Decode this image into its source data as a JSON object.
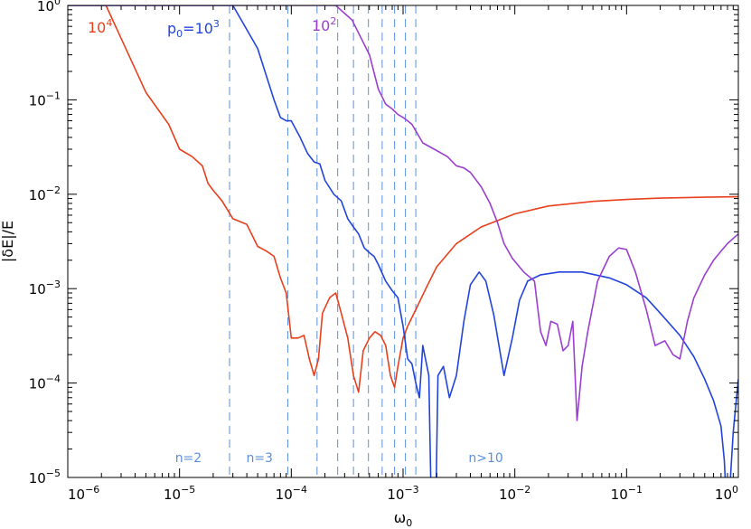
{
  "chart_data": {
    "type": "line",
    "xlabel": "ω",
    "xlabel_sub": "0",
    "ylabel": "|δE|/E",
    "x_scale": "log",
    "y_scale": "log",
    "xlim": [
      1e-06,
      1
    ],
    "ylim": [
      1e-05,
      1
    ],
    "grid": false,
    "x_ticks": [
      {
        "value": 1e-06,
        "base": "10",
        "exp": "−6"
      },
      {
        "value": 1e-05,
        "base": "10",
        "exp": "−5"
      },
      {
        "value": 0.0001,
        "base": "10",
        "exp": "−4"
      },
      {
        "value": 0.001,
        "base": "10",
        "exp": "−3"
      },
      {
        "value": 0.01,
        "base": "10",
        "exp": "−2"
      },
      {
        "value": 0.1,
        "base": "10",
        "exp": "−1"
      },
      {
        "value": 1,
        "base": "10",
        "exp": "0"
      }
    ],
    "y_ticks": [
      {
        "value": 1e-05,
        "base": "10",
        "exp": "−5"
      },
      {
        "value": 0.0001,
        "base": "10",
        "exp": "−4"
      },
      {
        "value": 0.001,
        "base": "10",
        "exp": "−3"
      },
      {
        "value": 0.01,
        "base": "10",
        "exp": "−2"
      },
      {
        "value": 0.1,
        "base": "10",
        "exp": "−1"
      },
      {
        "value": 1,
        "base": "10",
        "exp": "0"
      }
    ],
    "series": [
      {
        "label_base": "10",
        "label_exp": "4",
        "color": "#e8401c",
        "x": [
          1e-06,
          2.2e-06,
          5e-06,
          8e-06,
          1e-05,
          1.3e-05,
          1.6e-05,
          1.8e-05,
          2e-05,
          2.4e-05,
          3e-05,
          4e-05,
          5e-05,
          6e-05,
          7e-05,
          8e-05,
          9e-05,
          0.0001,
          0.000115,
          0.00013,
          0.000145,
          0.00016,
          0.000175,
          0.00019,
          0.00022,
          0.00025,
          0.00028,
          0.00032,
          0.00036,
          0.0004,
          0.00044,
          0.0005,
          0.00056,
          0.00063,
          0.0007,
          0.00077,
          0.00084,
          0.0009,
          0.001,
          0.0011,
          0.0013,
          0.0016,
          0.002,
          0.003,
          0.005,
          0.01,
          0.02,
          0.05,
          0.1,
          0.2,
          0.5,
          1
        ],
        "y": [
          1,
          1,
          0.12,
          0.055,
          0.03,
          0.025,
          0.02,
          0.013,
          0.011,
          0.0085,
          0.0055,
          0.0048,
          0.0028,
          0.0025,
          0.0022,
          0.0013,
          0.0009,
          0.0003,
          0.0003,
          0.00032,
          0.00018,
          0.00012,
          0.00018,
          0.00055,
          0.0008,
          0.0009,
          0.00055,
          0.0003,
          0.00012,
          8e-05,
          0.00022,
          0.0003,
          0.00035,
          0.00032,
          0.00025,
          0.00012,
          9e-05,
          0.00015,
          0.0003,
          0.0004,
          0.0006,
          0.001,
          0.0017,
          0.003,
          0.0045,
          0.0062,
          0.0075,
          0.0084,
          0.0088,
          0.0091,
          0.0093,
          0.0094
        ]
      },
      {
        "label": "p",
        "label_sub": "0",
        "label_eq": "=",
        "label_base": "10",
        "label_exp": "3",
        "color": "#2244dd",
        "x": [
          1e-06,
          3e-05,
          5e-05,
          7e-05,
          8e-05,
          9e-05,
          0.0001,
          0.00012,
          0.00014,
          0.00016,
          0.00018,
          0.0002,
          0.00024,
          0.00028,
          0.00032,
          0.00036,
          0.0004,
          0.00045,
          0.0005,
          0.00055,
          0.0006,
          0.0007,
          0.0008,
          0.0009,
          0.001,
          0.0011,
          0.0012,
          0.0013,
          0.0014,
          0.0015,
          0.0017,
          0.0018,
          0.00195,
          0.00205,
          0.0023,
          0.0026,
          0.003,
          0.0035,
          0.004,
          0.0048,
          0.0055,
          0.0065,
          0.008,
          0.0095,
          0.011,
          0.013,
          0.017,
          0.025,
          0.04,
          0.07,
          0.1,
          0.15,
          0.2,
          0.3,
          0.4,
          0.5,
          0.6,
          0.7,
          0.75,
          0.8,
          0.9,
          1
        ],
        "y": [
          1,
          1,
          0.35,
          0.1,
          0.065,
          0.06,
          0.06,
          0.04,
          0.027,
          0.022,
          0.021,
          0.014,
          0.01,
          0.0085,
          0.0055,
          0.0045,
          0.0038,
          0.0027,
          0.0024,
          0.0022,
          0.0018,
          0.0012,
          0.00095,
          0.0008,
          0.0004,
          0.00018,
          0.00016,
          0.0001,
          7e-05,
          0.00025,
          0.00012,
          3e-06,
          3e-06,
          0.00012,
          0.00015,
          7e-05,
          0.00012,
          0.00045,
          0.0011,
          0.0015,
          0.0012,
          0.00052,
          0.00012,
          0.0003,
          0.00075,
          0.0012,
          0.0014,
          0.0015,
          0.0015,
          0.0013,
          0.0011,
          0.0008,
          0.00055,
          0.00032,
          0.00019,
          0.00011,
          6.5e-05,
          3.5e-05,
          1.5e-05,
          3e-06,
          3e-05,
          0.00011
        ]
      },
      {
        "label_base": "10",
        "label_exp": "2",
        "color": "#9a3fd0",
        "x": [
          1e-06,
          0.00025,
          0.00035,
          0.0005,
          0.0006,
          0.0007,
          0.0008,
          0.0009,
          0.001,
          0.0011,
          0.0012,
          0.0015,
          0.002,
          0.0025,
          0.003,
          0.0035,
          0.004,
          0.005,
          0.006,
          0.007,
          0.008,
          0.0095,
          0.012,
          0.015,
          0.017,
          0.019,
          0.021,
          0.024,
          0.027,
          0.03,
          0.033,
          0.036,
          0.04,
          0.045,
          0.055,
          0.07,
          0.085,
          0.1,
          0.12,
          0.15,
          0.18,
          0.22,
          0.26,
          0.3,
          0.35,
          0.4,
          0.5,
          0.6,
          0.7,
          0.8,
          0.9,
          1
        ],
        "y": [
          1,
          1,
          0.7,
          0.3,
          0.13,
          0.09,
          0.08,
          0.07,
          0.065,
          0.06,
          0.055,
          0.035,
          0.029,
          0.025,
          0.02,
          0.019,
          0.017,
          0.012,
          0.008,
          0.005,
          0.003,
          0.0021,
          0.0015,
          0.0012,
          0.00035,
          0.00025,
          0.00045,
          0.00042,
          0.00022,
          0.00025,
          0.00045,
          4e-05,
          0.00015,
          0.00035,
          0.0012,
          0.0022,
          0.0027,
          0.0026,
          0.0015,
          0.0006,
          0.00025,
          0.00028,
          0.0002,
          0.00018,
          0.00045,
          0.0008,
          0.0014,
          0.002,
          0.0025,
          0.003,
          0.0034,
          0.0038
        ]
      }
    ],
    "vertical_lines": [
      2.8e-05,
      9.3e-05,
      0.00017,
      0.00026,
      0.00036,
      0.00049,
      0.00065,
      0.00084,
      0.00105,
      0.0013
    ],
    "vline_color": "#5b8fde",
    "region_labels": [
      {
        "text": "n=2",
        "x": 1.2e-05
      },
      {
        "text": "n=3",
        "x": 5.2e-05
      },
      {
        "text": "n>10",
        "x": 0.0055
      }
    ],
    "region_label_color": "#5b8fde"
  }
}
